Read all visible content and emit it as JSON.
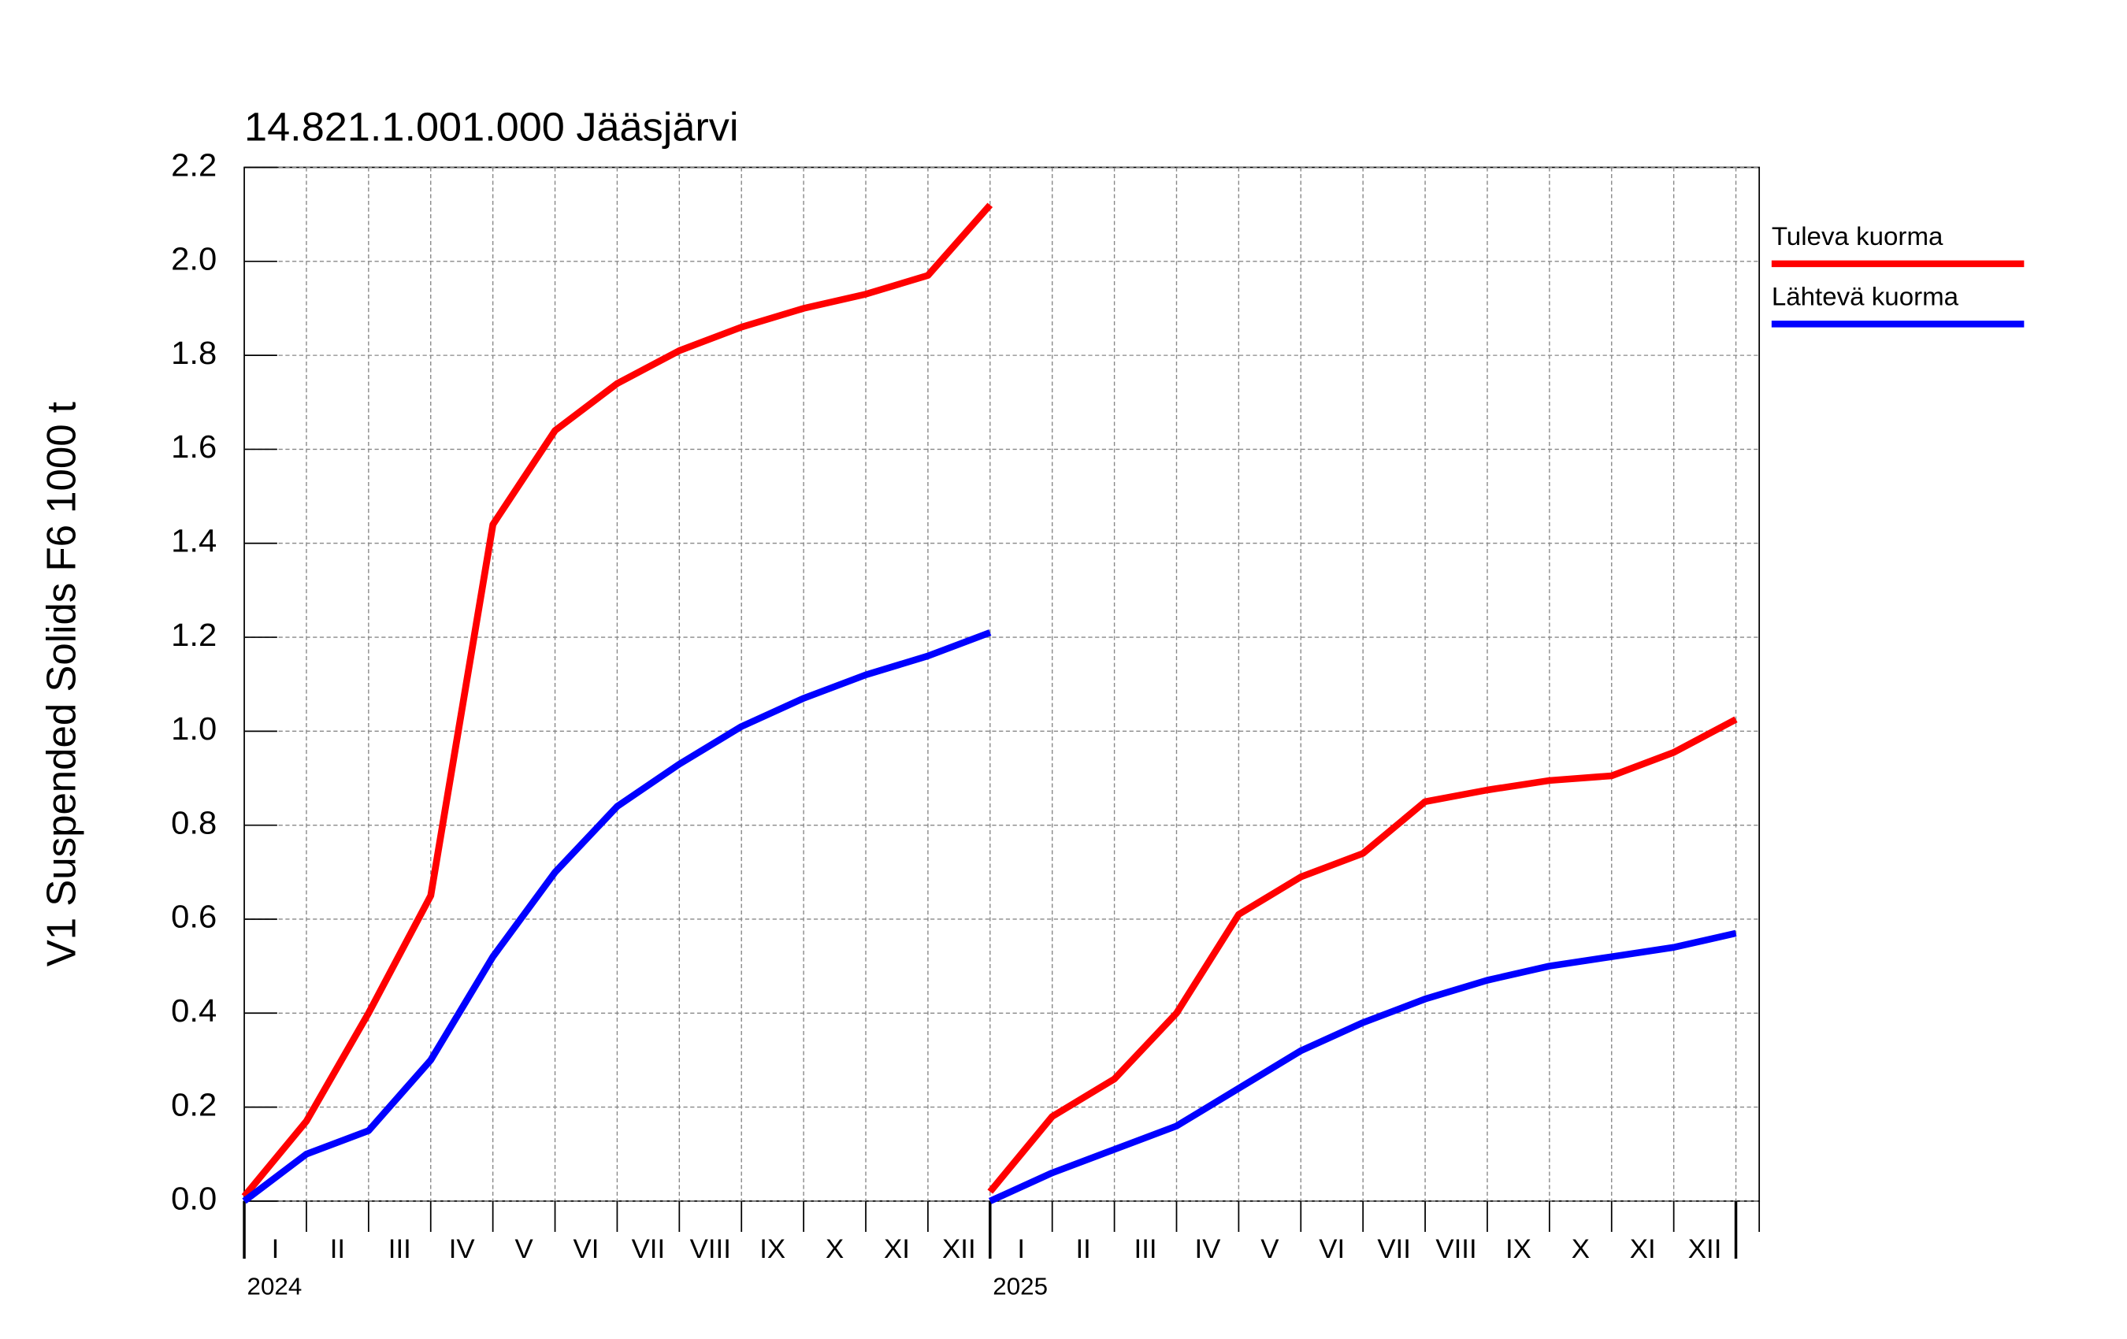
{
  "chart_data": {
    "type": "line",
    "title": "14.821.1.001.000 Jääsjärvi",
    "y_label": "V1 Suspended Solids F6 1000 t",
    "x": [
      "2024-01",
      "2024-02",
      "2024-03",
      "2024-04",
      "2024-05",
      "2024-06",
      "2024-07",
      "2024-08",
      "2024-09",
      "2024-10",
      "2024-11",
      "2024-12",
      "2025-01",
      "2025-01",
      "2025-01",
      "2025-02",
      "2025-03",
      "2025-04",
      "2025-05",
      "2025-06",
      "2025-07",
      "2025-08",
      "2025-09",
      "2025-10",
      "2025-11",
      "2025-12",
      "2026-01"
    ],
    "month_labels": [
      "I",
      "II",
      "III",
      "IV",
      "V",
      "VI",
      "VII",
      "VIII",
      "IX",
      "X",
      "XI",
      "XII"
    ],
    "year_labels": [
      "2024",
      "2025"
    ],
    "series": [
      {
        "name": "Tuleva kuorma",
        "color": "#ff0000",
        "values": [
          0.01,
          0.17,
          0.4,
          0.65,
          1.44,
          1.64,
          1.74,
          1.81,
          1.86,
          1.9,
          1.93,
          1.97,
          2.12,
          null,
          0.02,
          0.18,
          0.26,
          0.4,
          0.61,
          0.69,
          0.74,
          0.85,
          0.875,
          0.895,
          0.905,
          0.955,
          1.025
        ]
      },
      {
        "name": "Lähtevä kuorma",
        "color": "#0000ff",
        "values": [
          0.0,
          0.1,
          0.15,
          0.3,
          0.52,
          0.7,
          0.84,
          0.93,
          1.01,
          1.07,
          1.12,
          1.16,
          1.21,
          null,
          0.0,
          0.06,
          0.11,
          0.16,
          0.24,
          0.32,
          0.38,
          0.43,
          0.47,
          0.5,
          0.52,
          0.54,
          0.57
        ]
      }
    ],
    "ylim": [
      0,
      2.2
    ],
    "yticks": [
      {
        "value": 0,
        "label": "0.0"
      },
      0.2,
      0.4,
      0.6,
      0.8,
      {
        "value": 1,
        "label": "1.0"
      },
      1.2,
      1.4,
      1.6,
      1.8,
      {
        "value": 2,
        "label": "2.0"
      },
      2.2
    ],
    "grid": true
  }
}
